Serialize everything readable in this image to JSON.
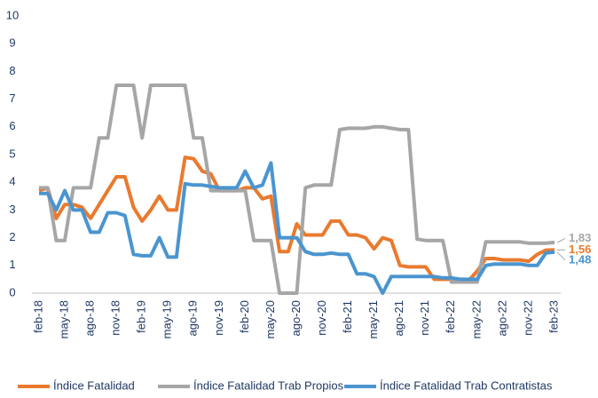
{
  "chart_data": {
    "type": "line",
    "categories": [
      "feb-18",
      null,
      null,
      "may-18",
      null,
      null,
      "ago-18",
      null,
      null,
      "nov-18",
      null,
      null,
      "feb-19",
      null,
      null,
      "may-19",
      null,
      null,
      "ago-19",
      null,
      null,
      "nov-19",
      null,
      null,
      "feb-20",
      null,
      null,
      "may-20",
      null,
      null,
      "ago-20",
      null,
      null,
      "nov-20",
      null,
      null,
      "feb-21",
      null,
      null,
      "may-21",
      null,
      null,
      "ago-21",
      null,
      null,
      "nov-21",
      null,
      null,
      "feb-22",
      null,
      null,
      "may-22",
      null,
      null,
      "ago-22",
      null,
      null,
      "nov-22",
      null,
      null,
      "feb-23"
    ],
    "series": [
      {
        "name": "Índice Fatalidad",
        "color": "#e97a2e",
        "values": [
          3.7,
          3.8,
          2.7,
          3.2,
          3.2,
          3.1,
          2.7,
          3.2,
          3.7,
          4.2,
          4.2,
          3.1,
          2.6,
          3.0,
          3.5,
          3.0,
          3.0,
          4.9,
          4.85,
          4.4,
          4.3,
          3.7,
          3.7,
          3.7,
          3.8,
          3.8,
          3.4,
          3.5,
          1.5,
          1.5,
          2.5,
          2.1,
          2.1,
          2.1,
          2.6,
          2.6,
          2.1,
          2.1,
          2.0,
          1.6,
          2.0,
          1.9,
          1.0,
          0.95,
          0.95,
          0.95,
          0.5,
          0.5,
          0.5,
          0.45,
          0.45,
          0.8,
          1.25,
          1.25,
          1.2,
          1.2,
          1.2,
          1.15,
          1.4,
          1.55,
          1.56
        ],
        "value_labels": [
          null,
          null,
          null,
          null,
          null,
          null,
          null,
          null,
          null,
          null,
          null,
          null,
          null,
          null,
          null,
          null,
          null,
          null,
          null,
          null,
          null,
          null,
          null,
          null,
          null,
          null,
          null,
          null,
          null,
          null,
          null,
          null,
          null,
          null,
          null,
          null,
          null,
          null,
          null,
          null,
          null,
          null,
          null,
          null,
          null,
          null,
          null,
          null,
          null,
          null,
          null,
          null,
          null,
          null,
          null,
          null,
          null,
          null,
          null,
          null,
          "1,56"
        ]
      },
      {
        "name": "Índice Fatalidad Trab Propios",
        "color": "#a6a6a6",
        "values": [
          3.8,
          3.8,
          1.9,
          1.9,
          3.8,
          3.8,
          3.8,
          5.6,
          5.6,
          7.5,
          7.5,
          7.5,
          5.6,
          7.5,
          7.5,
          7.5,
          7.5,
          7.5,
          5.6,
          5.6,
          3.7,
          3.7,
          3.7,
          3.7,
          3.7,
          1.9,
          1.9,
          1.9,
          0,
          0,
          0,
          3.8,
          3.9,
          3.9,
          3.9,
          5.9,
          5.95,
          5.95,
          5.95,
          6.0,
          6.0,
          5.95,
          5.9,
          5.9,
          1.95,
          1.9,
          1.9,
          1.9,
          0.4,
          0.4,
          0.4,
          0.4,
          1.85,
          1.85,
          1.85,
          1.85,
          1.85,
          1.8,
          1.8,
          1.8,
          1.83
        ],
        "value_labels": [
          null,
          null,
          null,
          null,
          null,
          null,
          null,
          null,
          null,
          null,
          null,
          null,
          null,
          null,
          null,
          null,
          null,
          null,
          null,
          null,
          null,
          null,
          null,
          null,
          null,
          null,
          null,
          null,
          null,
          null,
          null,
          null,
          null,
          null,
          null,
          null,
          null,
          null,
          null,
          null,
          null,
          null,
          null,
          null,
          null,
          null,
          null,
          null,
          null,
          null,
          null,
          null,
          null,
          null,
          null,
          null,
          null,
          null,
          null,
          null,
          "1,83"
        ]
      },
      {
        "name": "Índice Fatalidad Trab Contratistas",
        "color": "#4a95d0",
        "values": [
          3.6,
          3.6,
          3.0,
          3.7,
          3.0,
          3.0,
          2.2,
          2.2,
          2.9,
          2.9,
          2.8,
          1.4,
          1.35,
          1.35,
          2.0,
          1.3,
          1.3,
          3.95,
          3.9,
          3.9,
          3.85,
          3.8,
          3.8,
          3.8,
          4.4,
          3.8,
          3.9,
          4.7,
          2.0,
          2.0,
          2.0,
          1.5,
          1.4,
          1.4,
          1.45,
          1.4,
          1.4,
          0.7,
          0.7,
          0.6,
          0,
          0.6,
          0.6,
          0.6,
          0.6,
          0.6,
          0.6,
          0.55,
          0.55,
          0.5,
          0.5,
          0.5,
          1.0,
          1.05,
          1.05,
          1.05,
          1.05,
          1.0,
          1.0,
          1.45,
          1.48
        ],
        "value_labels": [
          null,
          null,
          null,
          null,
          null,
          null,
          null,
          null,
          null,
          null,
          null,
          null,
          null,
          null,
          null,
          null,
          null,
          null,
          null,
          null,
          null,
          null,
          null,
          null,
          null,
          null,
          null,
          null,
          null,
          null,
          null,
          null,
          null,
          null,
          null,
          null,
          null,
          null,
          null,
          null,
          null,
          null,
          null,
          null,
          null,
          null,
          null,
          null,
          null,
          null,
          null,
          null,
          null,
          null,
          null,
          null,
          null,
          null,
          null,
          null,
          "1,48"
        ]
      }
    ],
    "ylim": [
      0,
      10
    ],
    "yticks": [
      0,
      1,
      2,
      3,
      4,
      5,
      6,
      7,
      8,
      9,
      10
    ],
    "grid": false,
    "legend": "bottom"
  }
}
